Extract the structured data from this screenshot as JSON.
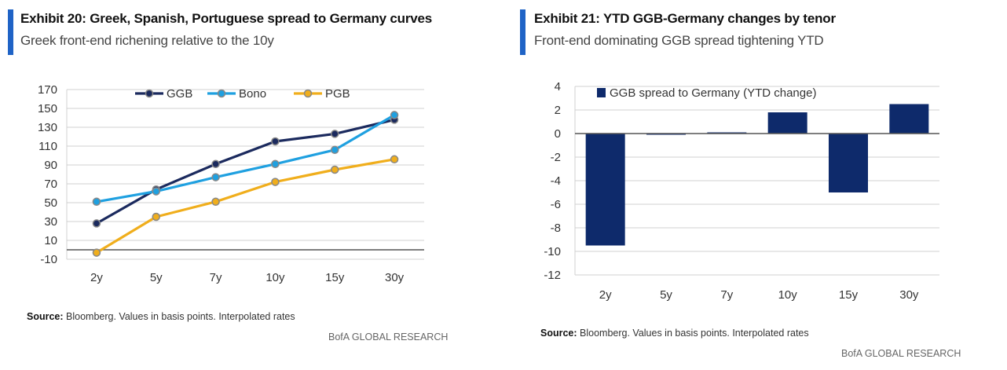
{
  "left": {
    "title": "Exhibit 20: Greek, Spanish, Portuguese spread to Germany curves",
    "subtitle": "Greek front-end richening relative to the 10y",
    "source_label": "Source:",
    "source_text": " Bloomberg. Values in basis points. Interpolated rates",
    "brand": "BofA GLOBAL RESEARCH",
    "accent_color": "#1f63c6"
  },
  "right": {
    "title": "Exhibit 21: YTD GGB-Germany changes by tenor",
    "subtitle": "Front-end dominating GGB spread tightening YTD",
    "source_label": "Source:",
    "source_text": " Bloomberg. Values in basis points. Interpolated rates",
    "brand": "BofA GLOBAL RESEARCH",
    "accent_color": "#1f63c6"
  },
  "chart_data": [
    {
      "type": "line",
      "categories": [
        "2y",
        "5y",
        "7y",
        "10y",
        "15y",
        "30y"
      ],
      "series": [
        {
          "name": "GGB",
          "values": [
            28,
            64,
            91,
            115,
            123,
            138
          ],
          "color": "#1b2a5e"
        },
        {
          "name": "Bono",
          "values": [
            51,
            62,
            77,
            91,
            106,
            143
          ],
          "color": "#1fa0e0"
        },
        {
          "name": "PGB",
          "values": [
            -3,
            35,
            51,
            72,
            85,
            96
          ],
          "color": "#f0ae1c"
        }
      ],
      "yticks": [
        170,
        150,
        130,
        110,
        90,
        70,
        50,
        30,
        10,
        -10
      ],
      "ylim": [
        -10,
        170
      ],
      "grid": true,
      "legend": "top"
    },
    {
      "type": "bar",
      "categories": [
        "2y",
        "5y",
        "7y",
        "10y",
        "15y",
        "30y"
      ],
      "series": [
        {
          "name": "GGB spread to Germany (YTD change)",
          "values": [
            -9.5,
            -0.1,
            0.1,
            1.8,
            -5.0,
            2.5
          ],
          "color": "#0e2a6b"
        }
      ],
      "yticks": [
        4,
        2,
        0,
        -2,
        -4,
        -6,
        -8,
        -10,
        -12
      ],
      "ylim": [
        -12,
        4
      ],
      "grid": true,
      "legend": "top-left"
    }
  ]
}
